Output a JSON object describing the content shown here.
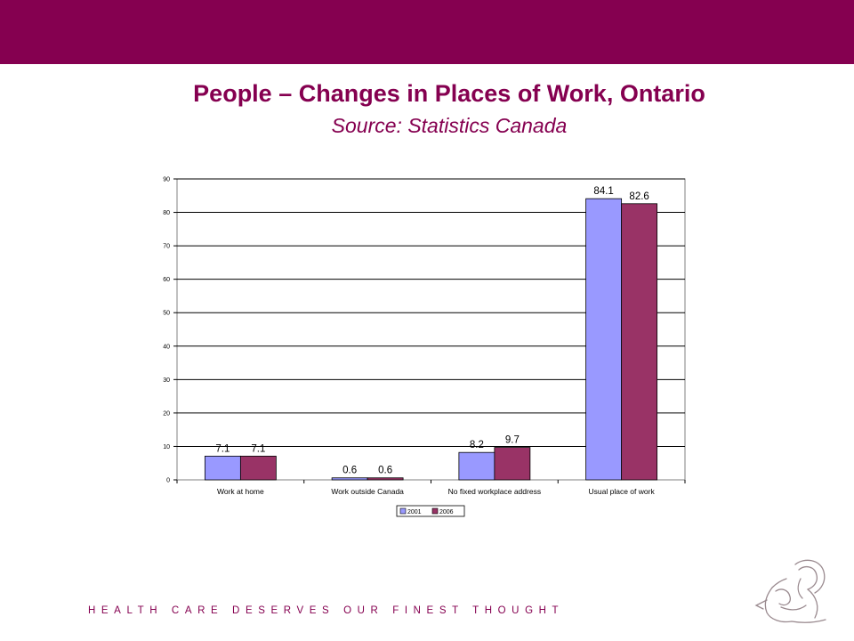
{
  "slide": {
    "title": "People – Changes in Places of Work, Ontario",
    "subtitle": "Source: Statistics Canada",
    "tagline": "HEALTH CARE DESERVES OUR FINEST THOUGHT",
    "brand_color": "#850050",
    "logo_icon": "mother-and-child-logo-icon"
  },
  "chart_data": {
    "type": "bar",
    "title": "",
    "xlabel": "",
    "ylabel": "",
    "categories": [
      "Work at home",
      "Work outside Canada",
      "No fixed workplace address",
      "Usual place of work"
    ],
    "series": [
      {
        "name": "2001",
        "values": [
          7.1,
          0.6,
          8.2,
          84.1
        ],
        "labels": [
          "7.1",
          "0.6",
          "8.2",
          "84.1"
        ],
        "color": "#9999ff"
      },
      {
        "name": "2006",
        "values": [
          7.1,
          0.6,
          9.7,
          82.6
        ],
        "labels": [
          "7.1",
          "0.6",
          "9.7",
          "82.6"
        ],
        "color": "#993366"
      }
    ],
    "ylim": [
      0,
      90
    ],
    "yticks": [
      0,
      10,
      20,
      30,
      40,
      50,
      60,
      70,
      80,
      90
    ],
    "grid": true,
    "legend": "bottom-center"
  }
}
